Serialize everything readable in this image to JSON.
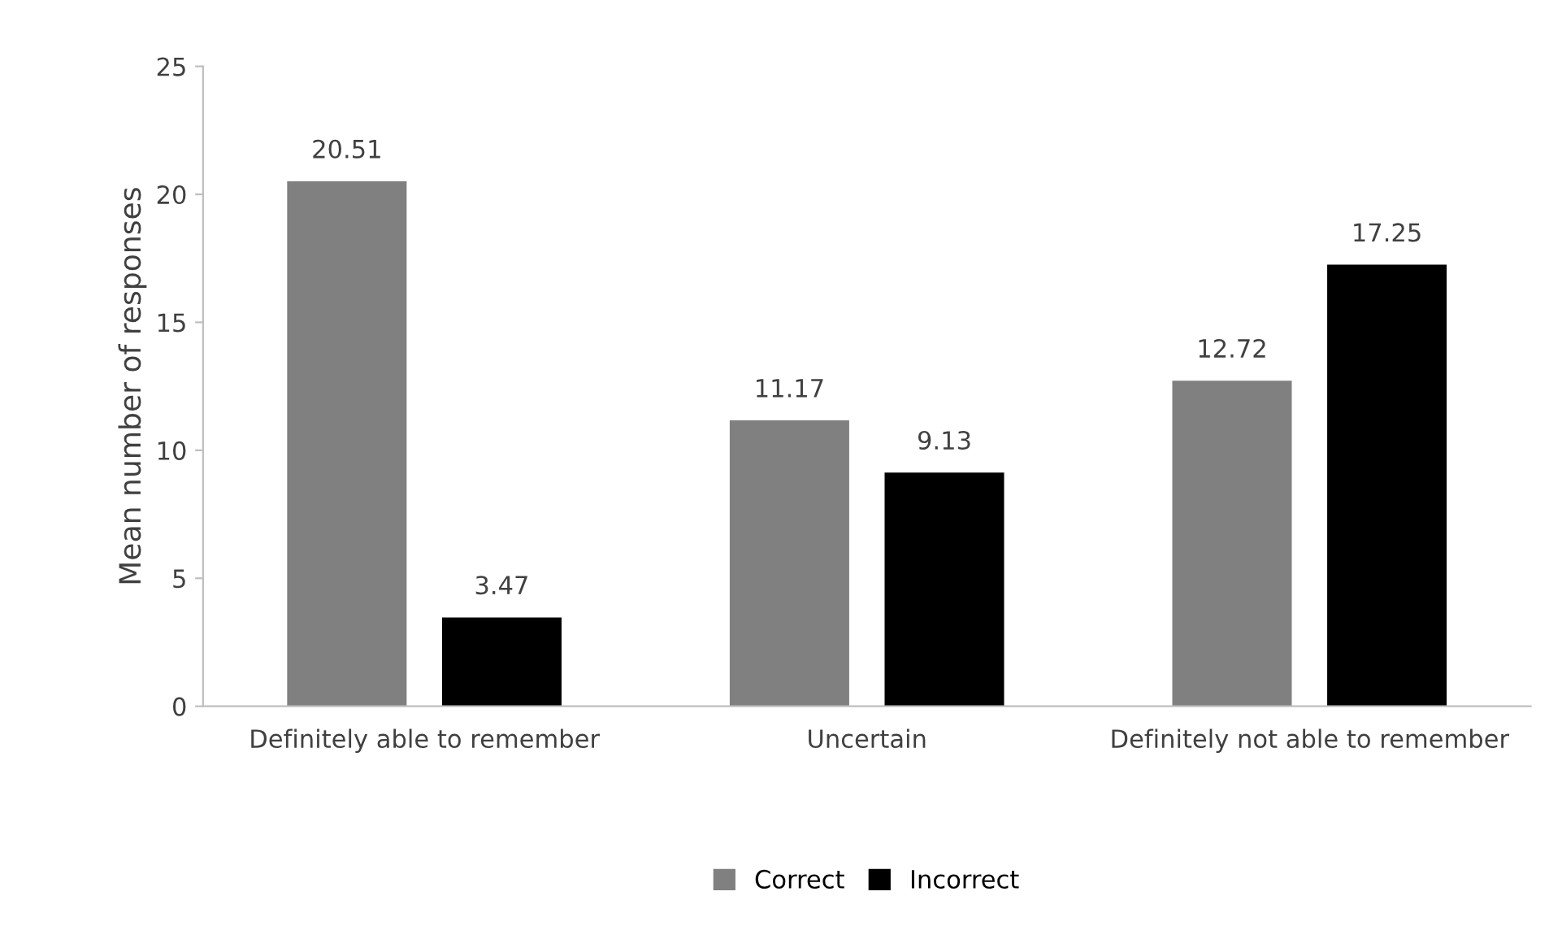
{
  "chart_data": {
    "type": "bar",
    "ylabel": "Mean number of responses",
    "categories": [
      "Definitely able to remember",
      "Uncertain",
      "Definitely not able to remember"
    ],
    "series": [
      {
        "name": "Correct",
        "color": "#808080",
        "values": [
          20.51,
          11.17,
          12.72
        ]
      },
      {
        "name": "Incorrect",
        "color": "#000000",
        "values": [
          3.47,
          9.13,
          17.25
        ]
      }
    ],
    "ylim": [
      0,
      25
    ],
    "yticks": [
      0,
      5,
      10,
      15,
      20,
      25
    ],
    "grid": false,
    "legend": "bottom",
    "data_labels": true
  }
}
